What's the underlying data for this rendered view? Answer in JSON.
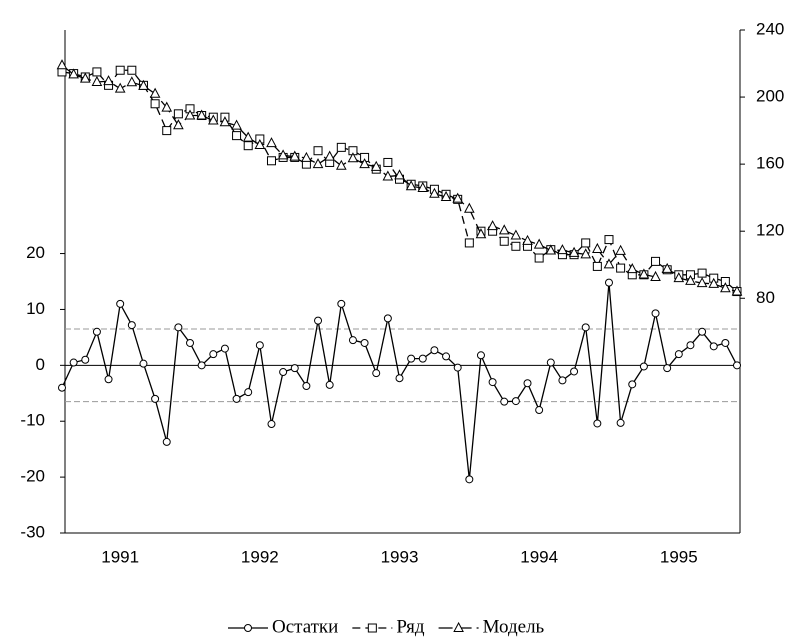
{
  "chart_data": {
    "type": "line",
    "xlim": [
      0,
      58
    ],
    "xticks": [
      {
        "value": 5,
        "label": "1991"
      },
      {
        "value": 17,
        "label": "1992"
      },
      {
        "value": 29,
        "label": "1993"
      },
      {
        "value": 41,
        "label": "1994"
      },
      {
        "value": 53,
        "label": "1995"
      }
    ],
    "ylim": [
      -30,
      60
    ],
    "yticks": [
      -30,
      -20,
      -10,
      0,
      10,
      20
    ],
    "y2lim": [
      -60,
      240
    ],
    "y2ticks": [
      80,
      120,
      160,
      200,
      240
    ],
    "zero_line": true,
    "control_lines": [
      6.5,
      -6.5
    ],
    "legend": "bottom",
    "series": [
      {
        "name": "Остатки",
        "color": "#000000",
        "marker": "circle",
        "line_style": "solid",
        "values": [
          -4,
          0.5,
          1,
          6,
          -2.5,
          11,
          7.2,
          0.3,
          -6,
          -13.7,
          6.8,
          4,
          0,
          2,
          3,
          -6,
          -4.8,
          3.6,
          -10.5,
          -1.2,
          -0.5,
          -3.7,
          8,
          -3.5,
          11,
          4.5,
          4,
          -1.4,
          8.4,
          -2.3,
          1.2,
          1.2,
          2.7,
          1.6,
          -0.4,
          -20.4,
          1.8,
          -3,
          -6.5,
          -6.4,
          -3.2,
          -8,
          0.5,
          -2.7,
          -1.1,
          6.8,
          -10.4,
          14.8,
          -10.3,
          -3.4,
          -0.2,
          9.3,
          -0.5,
          2,
          3.6,
          6,
          3.4,
          4,
          0
        ]
      },
      {
        "name": "Ряд",
        "color": "#000000",
        "marker": "square",
        "line_style": "dashed",
        "axis": "y2",
        "values": [
          215,
          214,
          212,
          215,
          207,
          216,
          216,
          207,
          196,
          180,
          190,
          193,
          189,
          188,
          188,
          177,
          171,
          175,
          162,
          164,
          164,
          160,
          168,
          161,
          170,
          168,
          164,
          157,
          161,
          151,
          148,
          147,
          145,
          142,
          139,
          113,
          120,
          120,
          114,
          111,
          111,
          104,
          109,
          106,
          106,
          113,
          99,
          115,
          98,
          94,
          94,
          102,
          97,
          94,
          94,
          95,
          92,
          90,
          84
        ]
      },
      {
        "name": "Модель",
        "color": "#000000",
        "marker": "triangle",
        "line_style": "longdash",
        "axis": "y2",
        "values": [
          219,
          213.5,
          211,
          209,
          209.5,
          205,
          208.8,
          206.7,
          202,
          193.7,
          183.2,
          189,
          189,
          186,
          185,
          183,
          175.8,
          171.4,
          172.5,
          165.2,
          164.5,
          163.7,
          160,
          164.5,
          159,
          163.5,
          160,
          158.4,
          152.6,
          153.3,
          146.8,
          145.8,
          142.3,
          140.4,
          139.4,
          133.4,
          118.2,
          123,
          120.5,
          117.4,
          114.2,
          112,
          108.5,
          108.7,
          107.1,
          106.2,
          109.4,
          100.2,
          108.3,
          97.4,
          94.2,
          92.7,
          97.5,
          92,
          90.4,
          89,
          88.6,
          86,
          84
        ]
      }
    ]
  }
}
